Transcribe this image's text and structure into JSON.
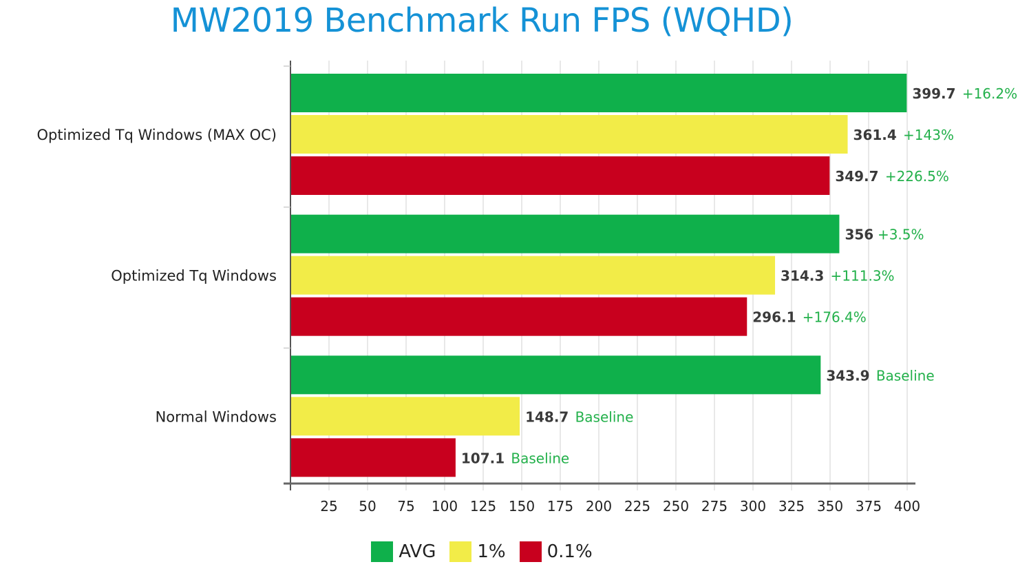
{
  "chart_data": {
    "type": "bar",
    "orientation": "horizontal",
    "title": "MW2019 Benchmark Run FPS (WQHD)",
    "xlabel": "",
    "ylabel": "",
    "xlim": [
      0,
      400
    ],
    "x_ticks": [
      25,
      50,
      75,
      100,
      125,
      150,
      175,
      200,
      225,
      250,
      275,
      300,
      325,
      350,
      375,
      400
    ],
    "grid": true,
    "legend_position": "bottom-center",
    "categories": [
      "Optimized Tq Windows (MAX OC)",
      "Optimized Tq Windows",
      "Normal Windows"
    ],
    "series": [
      {
        "name": "AVG",
        "color": "#0fb04b",
        "values": [
          399.7,
          356,
          343.9
        ],
        "value_labels": [
          "399.7",
          "356",
          "343.9"
        ],
        "annotations": [
          "+16.2%",
          "+3.5%",
          "Baseline"
        ]
      },
      {
        "name": "1%",
        "color": "#f2ec48",
        "values": [
          361.4,
          314.3,
          148.7
        ],
        "value_labels": [
          "361.4",
          "314.3",
          "148.7"
        ],
        "annotations": [
          "+143%",
          "+111.3%",
          "Baseline"
        ]
      },
      {
        "name": "0.1%",
        "color": "#c8001e",
        "values": [
          349.7,
          296.1,
          107.1
        ],
        "value_labels": [
          "349.7",
          "296.1",
          "107.1"
        ],
        "annotations": [
          "+226.5%",
          "+176.4%",
          "Baseline"
        ]
      }
    ],
    "title_color": "#1592d6",
    "annotation_color": "#22b04a"
  }
}
